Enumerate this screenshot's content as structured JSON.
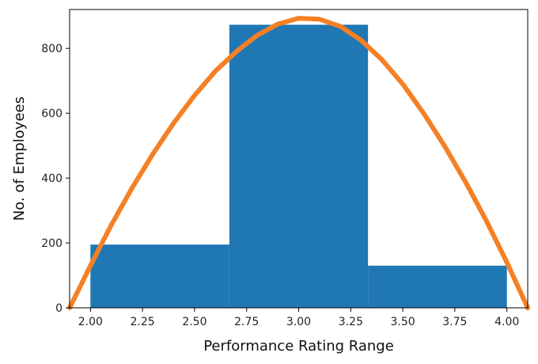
{
  "chart_data": {
    "type": "bar",
    "title": "",
    "xlabel": "Performance Rating Range",
    "ylabel": "No. of Employees",
    "xlim": [
      1.9,
      4.1
    ],
    "ylim": [
      0,
      920
    ],
    "xticks": [
      "2.00",
      "2.25",
      "2.50",
      "2.75",
      "3.00",
      "3.25",
      "3.50",
      "3.75",
      "4.00"
    ],
    "yticks": [
      "0",
      "200",
      "400",
      "600",
      "800"
    ],
    "bins": [
      {
        "x0": 2.0,
        "x1": 2.667,
        "value": 195
      },
      {
        "x0": 2.667,
        "x1": 3.333,
        "value": 873
      },
      {
        "x0": 3.333,
        "x1": 4.0,
        "value": 130
      }
    ],
    "curve": {
      "x": [
        1.9,
        1.95,
        2.0,
        2.1,
        2.2,
        2.3,
        2.4,
        2.5,
        2.6,
        2.7,
        2.8,
        2.9,
        3.0,
        3.1,
        3.2,
        3.3,
        3.4,
        3.5,
        3.6,
        3.7,
        3.8,
        3.9,
        4.0,
        4.05,
        4.1
      ],
      "y": [
        0,
        65,
        130,
        255,
        370,
        475,
        570,
        655,
        730,
        790,
        840,
        875,
        893,
        890,
        868,
        825,
        765,
        690,
        600,
        500,
        390,
        270,
        140,
        70,
        0
      ]
    },
    "colors": {
      "bars": "#1f77b4",
      "curve": "#f58025"
    },
    "grid": false,
    "legend": "none"
  }
}
